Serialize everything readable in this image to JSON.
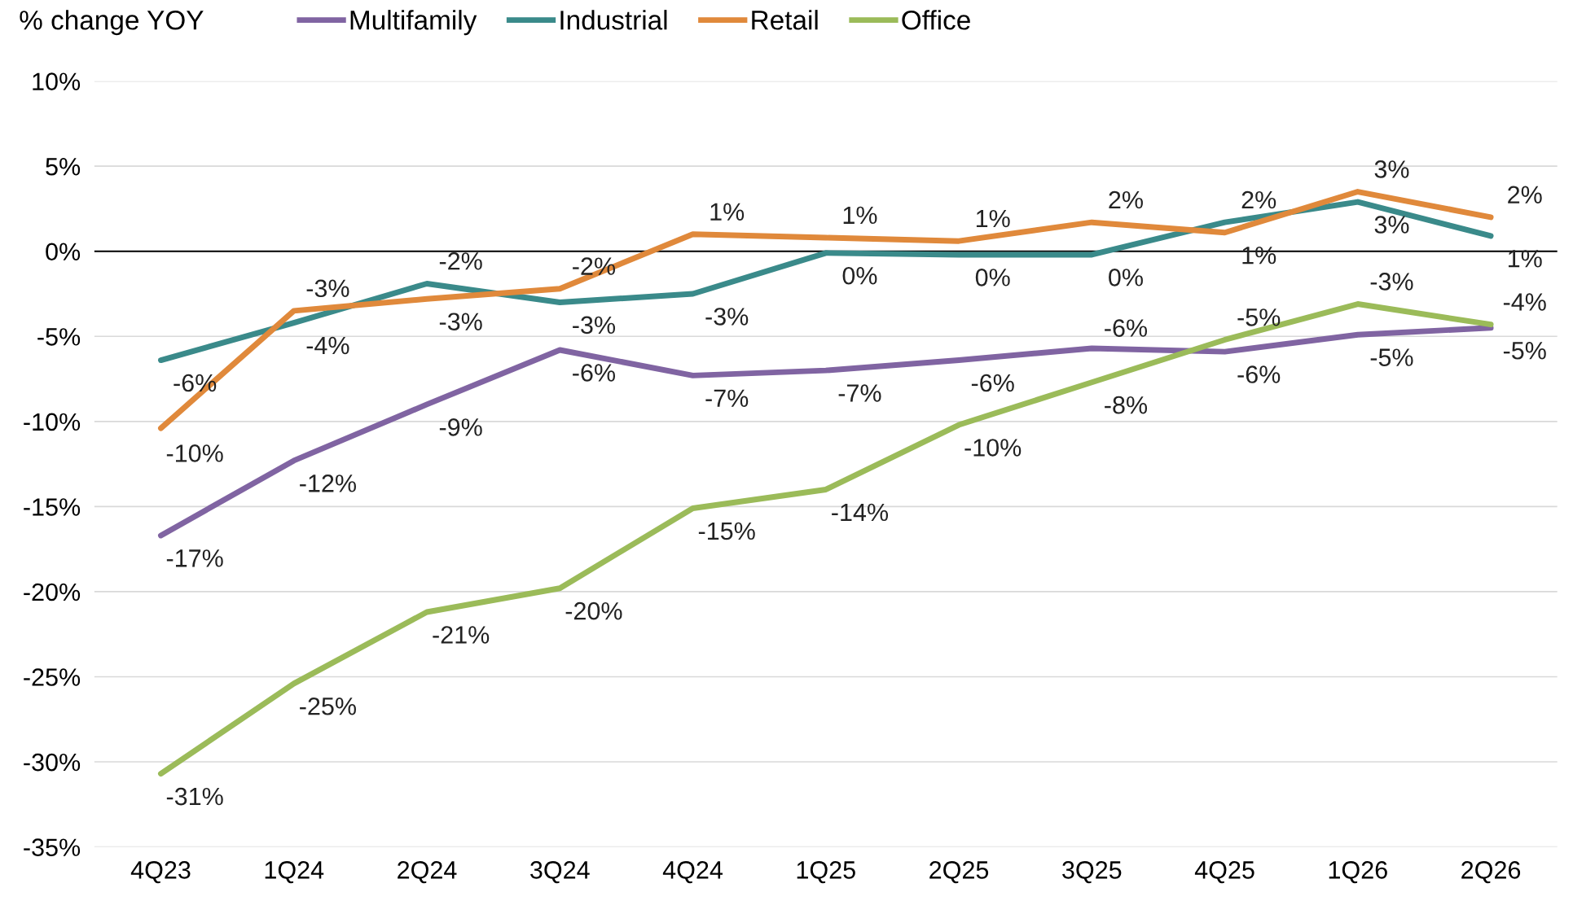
{
  "chart_data": {
    "type": "line",
    "ylabel": "% change YOY",
    "categories": [
      "4Q23",
      "1Q24",
      "2Q24",
      "3Q24",
      "4Q24",
      "1Q25",
      "2Q25",
      "3Q25",
      "4Q25",
      "1Q26",
      "2Q26"
    ],
    "series": [
      {
        "name": "Multifamily",
        "color": "#8064a2",
        "values": [
          -16.7,
          -12.3,
          -9.0,
          -5.8,
          -7.3,
          -7.0,
          -6.4,
          -5.7,
          -5.9,
          -4.9,
          -4.5
        ],
        "value_labels": [
          "-17%",
          "-12%",
          "-9%",
          "-6%",
          "-7%",
          "-7%",
          "-6%",
          "-6%",
          "-6%",
          "-5%",
          "-5%"
        ]
      },
      {
        "name": "Industrial",
        "color": "#3a8a8a",
        "values": [
          -6.4,
          -4.2,
          -1.9,
          -3.0,
          -2.5,
          -0.1,
          -0.2,
          -0.2,
          1.7,
          2.9,
          0.9
        ],
        "value_labels": [
          "-6%",
          "-4%",
          "-2%",
          "-3%",
          "-3%",
          "0%",
          "0%",
          "0%",
          "2%",
          "3%",
          "1%"
        ]
      },
      {
        "name": "Retail",
        "color": "#e0893b",
        "values": [
          -10.4,
          -3.5,
          -2.8,
          -2.2,
          1.0,
          0.8,
          0.6,
          1.7,
          1.1,
          3.5,
          2.0
        ],
        "value_labels": [
          "-10%",
          "-3%",
          "-3%",
          "-2%",
          "1%",
          "1%",
          "1%",
          "2%",
          "1%",
          "3%",
          "2%"
        ]
      },
      {
        "name": "Office",
        "color": "#9bbb59",
        "values": [
          -30.7,
          -25.4,
          -21.2,
          -19.8,
          -15.1,
          -14.0,
          -10.2,
          -7.7,
          -5.2,
          -3.1,
          -4.3
        ],
        "value_labels": [
          "-31%",
          "-25%",
          "-21%",
          "-20%",
          "-15%",
          "-14%",
          "-10%",
          "-8%",
          "-5%",
          "-3%",
          "-4%"
        ]
      }
    ],
    "ylim": [
      -35,
      10
    ],
    "yticks": [
      {
        "value": -35,
        "label": "-35%"
      },
      {
        "value": -30,
        "label": "-30%"
      },
      {
        "value": -25,
        "label": "-25%"
      },
      {
        "value": -20,
        "label": "-20%"
      },
      {
        "value": -15,
        "label": "-15%"
      },
      {
        "value": -10,
        "label": "-10%"
      },
      {
        "value": -5,
        "label": "-5%"
      },
      {
        "value": 0,
        "label": "0%"
      },
      {
        "value": 5,
        "label": "5%"
      },
      {
        "value": 10,
        "label": "10%"
      }
    ],
    "ref_lines": [
      {
        "axis": "y",
        "value": 0,
        "color": "#000000"
      }
    ],
    "grid": "y",
    "legend": "top",
    "marker": "none",
    "line_style": "solid"
  }
}
